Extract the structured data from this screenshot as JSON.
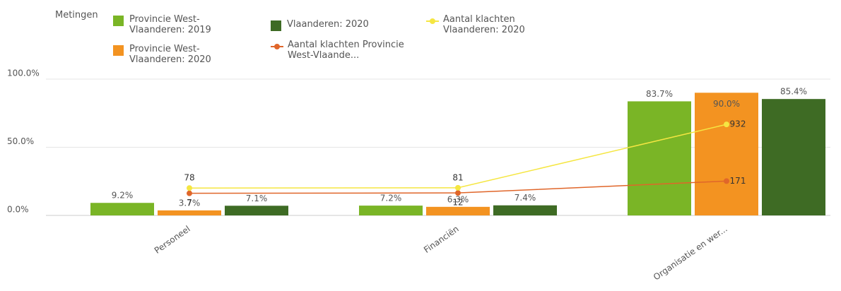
{
  "chart_data": {
    "type": "bar",
    "legend_title": "Metingen",
    "categories": [
      "Personeel",
      "Financiën",
      "Organisatie en wer..."
    ],
    "series": [
      {
        "name": "Provincie West-Vlaanderen: 2019",
        "type": "bar",
        "color": "#7ab526",
        "values": [
          9.2,
          7.2,
          83.7
        ],
        "value_labels": [
          "9.2%",
          "7.2%",
          "83.7%"
        ]
      },
      {
        "name": "Provincie West-Vlaanderen: 2020",
        "type": "bar",
        "color": "#f39321",
        "values": [
          3.7,
          6.3,
          90.0
        ],
        "value_labels": [
          "3.7%",
          "6.3%",
          "90.0%"
        ]
      },
      {
        "name": "Vlaanderen: 2020",
        "type": "bar",
        "color": "#3e6b24",
        "values": [
          7.1,
          7.4,
          85.4
        ],
        "value_labels": [
          "7.1%",
          "7.4%",
          "85.4%"
        ]
      },
      {
        "name": "Aantal klachten Provincie West-Vlaande...",
        "type": "line",
        "axis": "y2",
        "color": "#e0662a",
        "values": [
          7,
          12,
          171
        ]
      },
      {
        "name": "Aantal klachten Vlaanderen: 2020",
        "type": "line",
        "axis": "y2",
        "color": "#f5e642",
        "values": [
          78,
          81,
          932
        ]
      }
    ],
    "ylim": [
      0,
      100
    ],
    "yticks": [
      {
        "value": 0,
        "label": "0.0%"
      },
      {
        "value": 50,
        "label": "50.0%"
      },
      {
        "value": 100,
        "label": "100.0%"
      }
    ],
    "y2lim": [
      -290,
      1540
    ],
    "grid": true
  }
}
